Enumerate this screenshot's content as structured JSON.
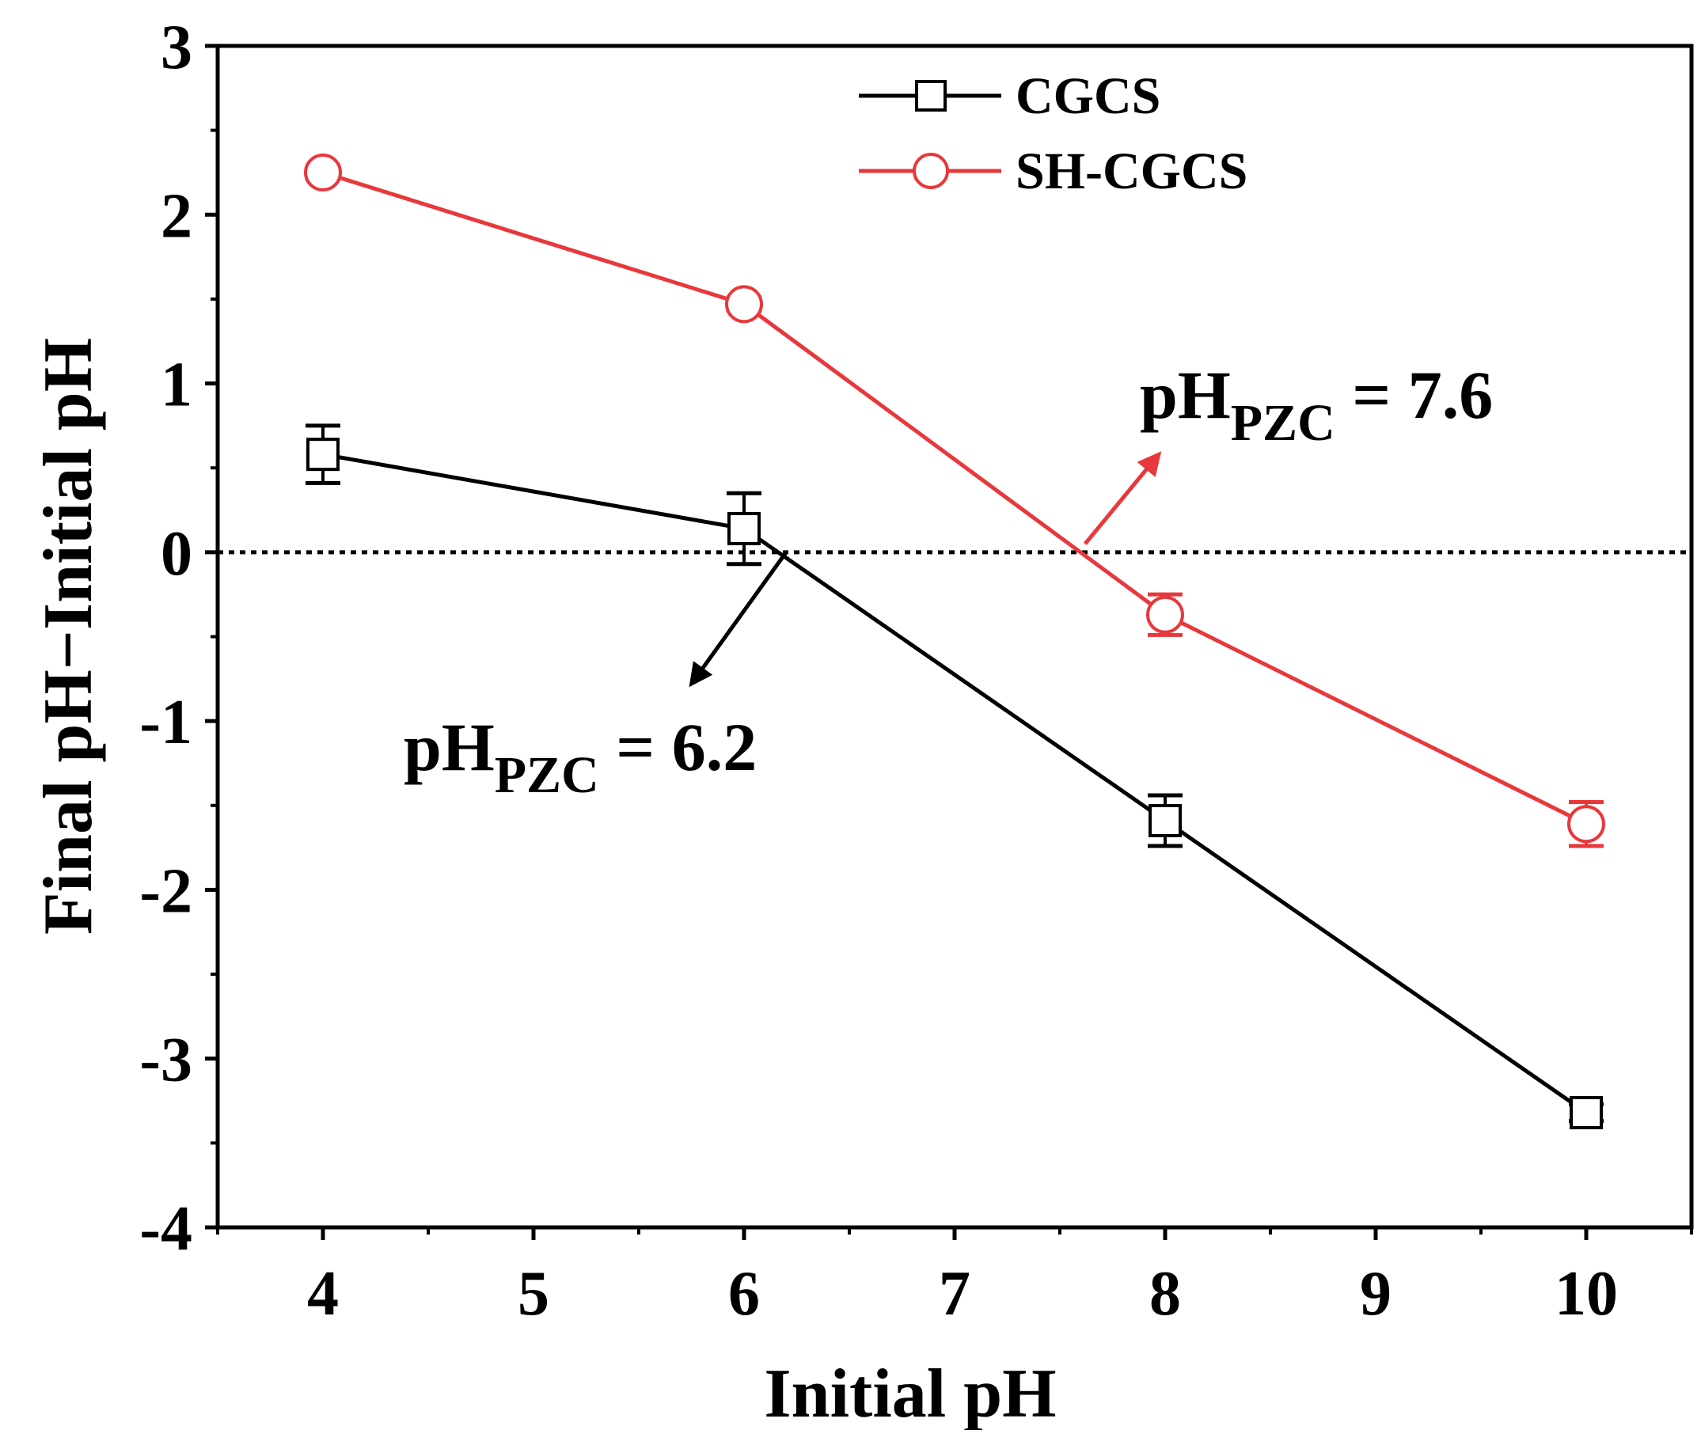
{
  "chart_data": {
    "type": "line",
    "title": "",
    "xlabel": "Initial  pH",
    "ylabel": "Final pH−Initial pH",
    "xlim": [
      3.5,
      10.5
    ],
    "ylim": [
      -4,
      3
    ],
    "xticks": [
      4,
      5,
      6,
      7,
      8,
      9,
      10
    ],
    "yticks": [
      -4,
      -3,
      -2,
      -1,
      0,
      1,
      2,
      3
    ],
    "grid": false,
    "legend_position": "top-center",
    "reference_line": {
      "y": 0,
      "style": "dotted"
    },
    "series": [
      {
        "name": "CGCS",
        "color": "#000000",
        "marker": "square",
        "x": [
          4,
          6,
          8,
          10
        ],
        "y": [
          0.58,
          0.14,
          -1.59,
          -3.32
        ],
        "error": [
          0.17,
          0.21,
          0.15,
          0.05
        ]
      },
      {
        "name": "SH-CGCS",
        "color": "#e8383b",
        "marker": "circle",
        "x": [
          4,
          6,
          8,
          10
        ],
        "y": [
          2.25,
          1.47,
          -0.37,
          -1.61
        ],
        "error": [
          0.04,
          0.04,
          0.12,
          0.13
        ]
      }
    ],
    "annotations": [
      {
        "main": "pH",
        "sub": "PZC",
        "rest": " = 6.2",
        "arrow_color": "#000000",
        "from": [
          6.2,
          0
        ],
        "to": [
          5.75,
          -0.78
        ]
      },
      {
        "main": "pH",
        "sub": "PZC",
        "rest": " = 7.6",
        "arrow_color": "#e8383b",
        "from": [
          7.62,
          0.05
        ],
        "to": [
          7.97,
          0.58
        ]
      }
    ]
  }
}
